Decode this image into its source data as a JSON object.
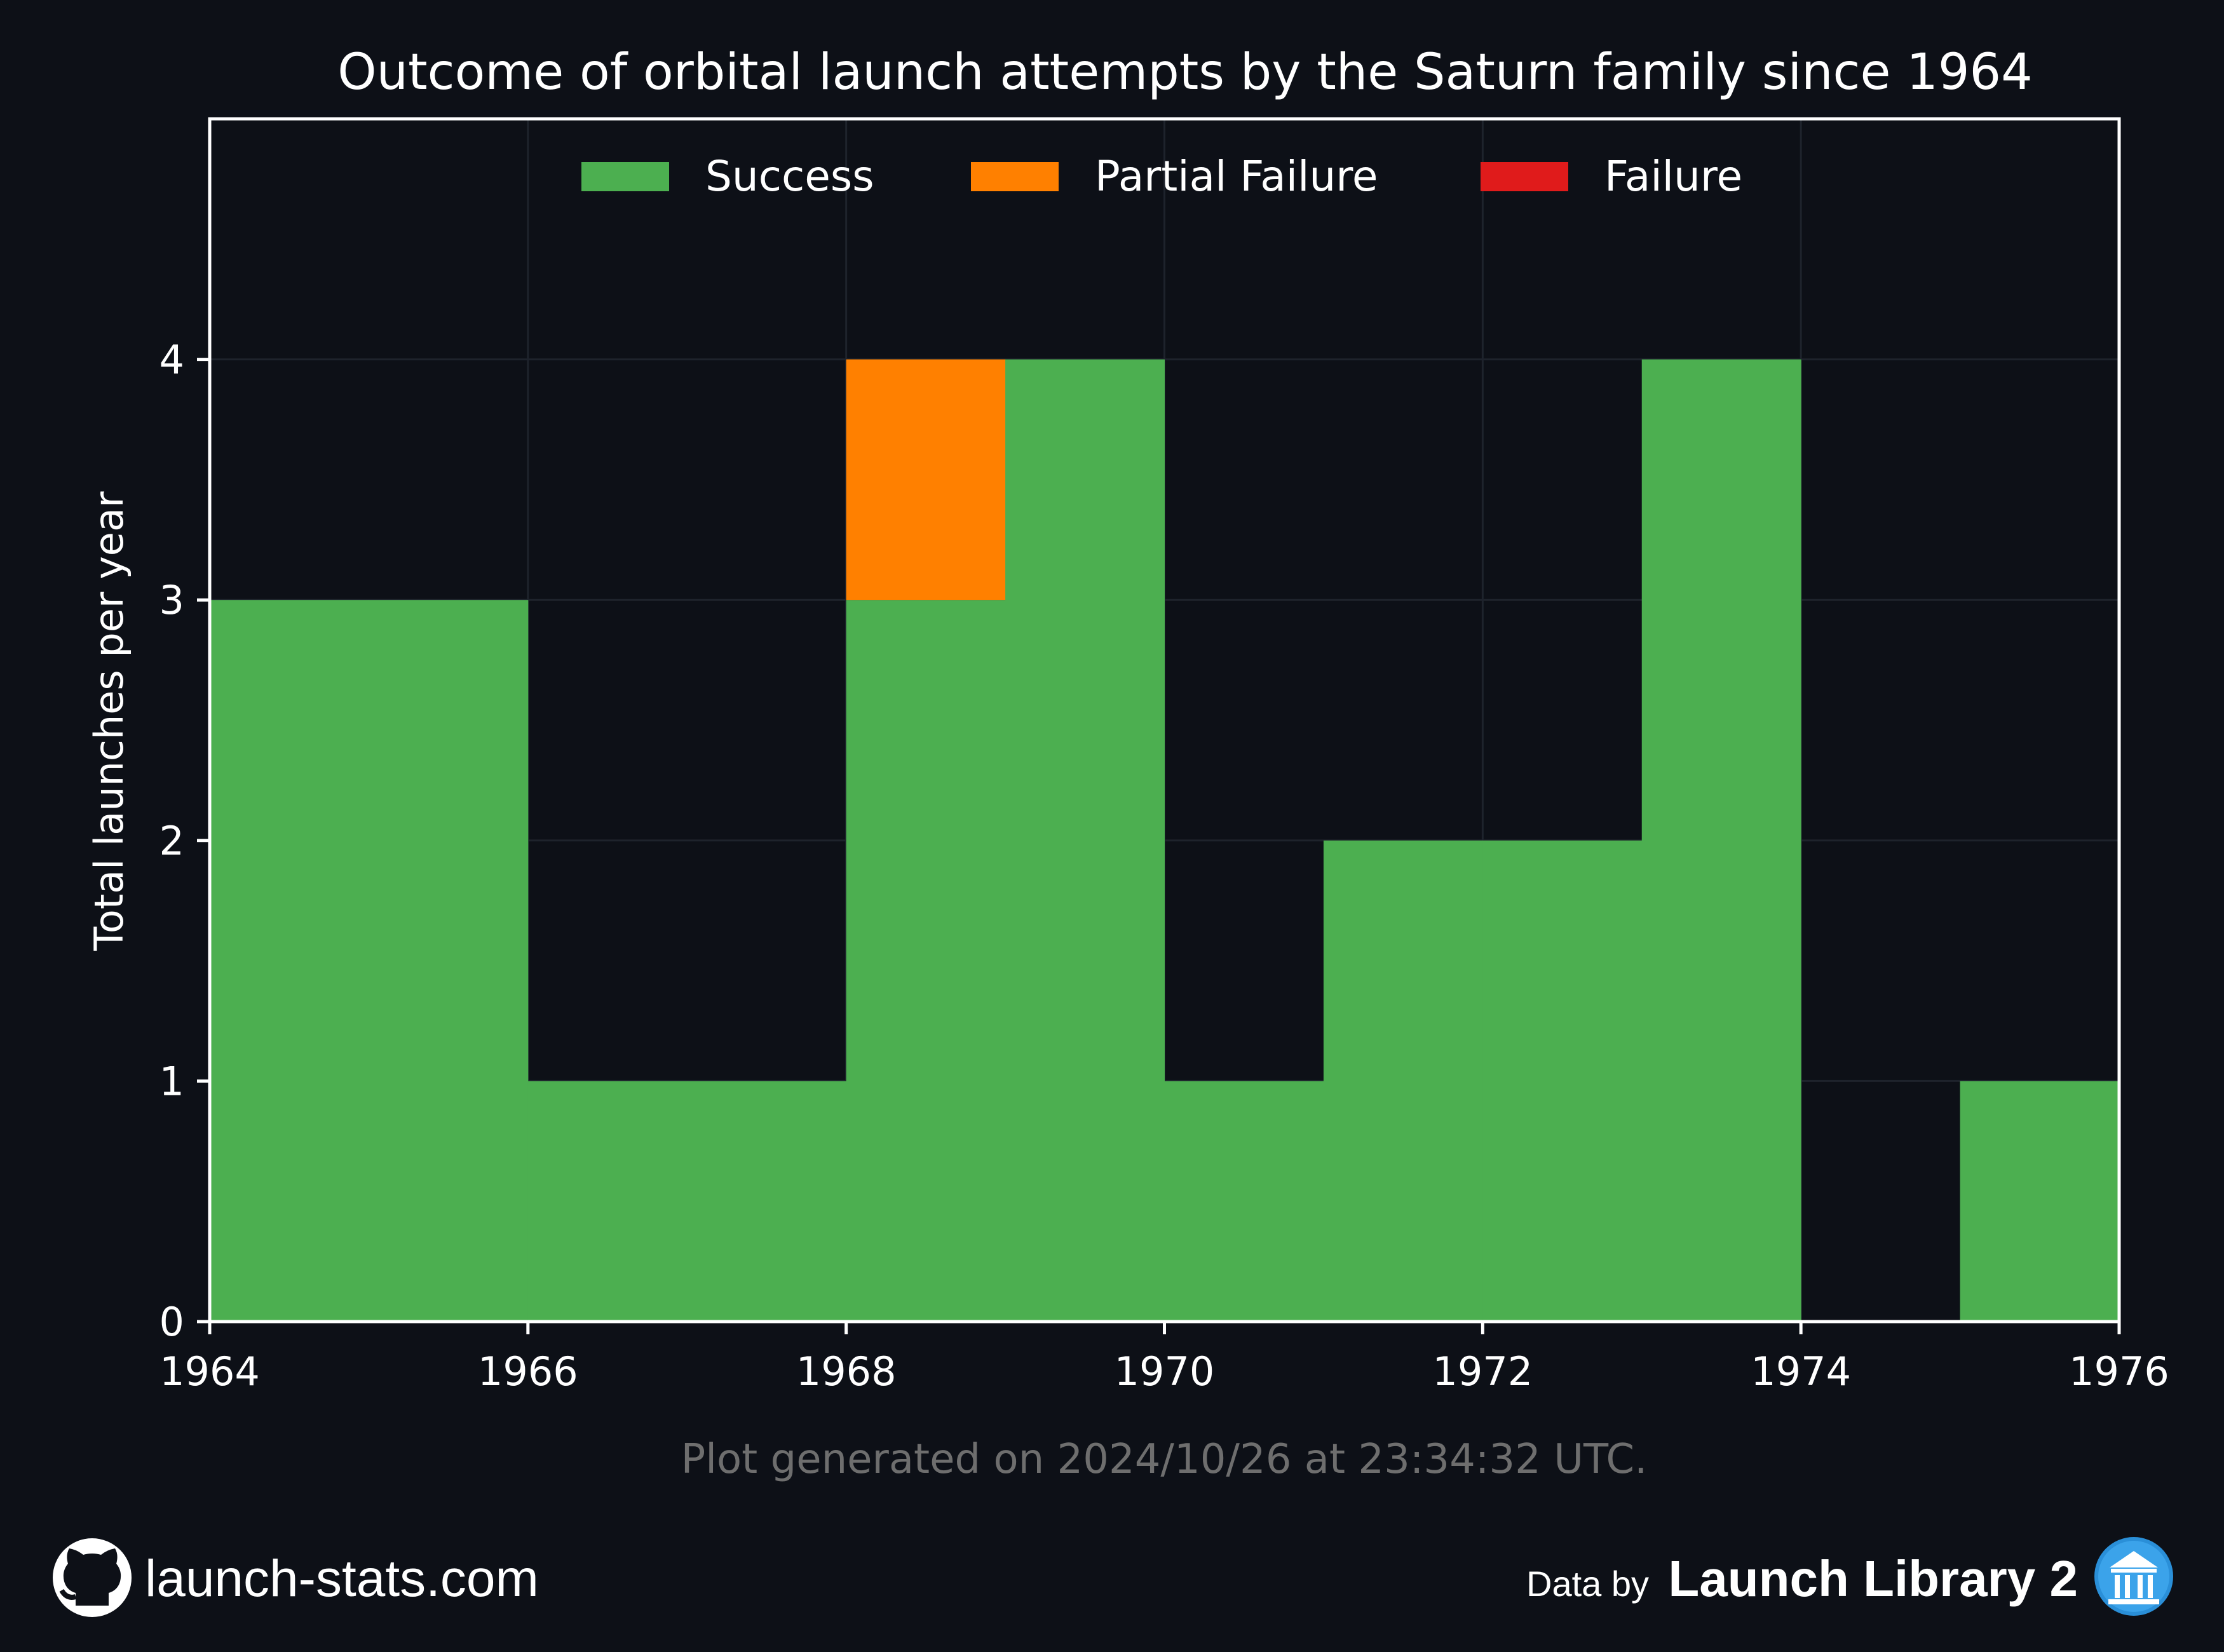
{
  "chart_data": {
    "type": "bar",
    "title": "Outcome of orbital launch attempts by the Saturn family since 1964",
    "ylabel": "Total launches per year",
    "xlabel": "",
    "categories": [
      "1964",
      "1965",
      "1966",
      "1967",
      "1968",
      "1969",
      "1970",
      "1971",
      "1972",
      "1973",
      "1974",
      "1975"
    ],
    "series": [
      {
        "name": "Success",
        "color": "#4caf50",
        "values": [
          3,
          3,
          1,
          1,
          3,
          4,
          1,
          2,
          2,
          4,
          0,
          1
        ]
      },
      {
        "name": "Partial Failure",
        "color": "#ff8000",
        "values": [
          0,
          0,
          0,
          0,
          1,
          0,
          0,
          0,
          0,
          0,
          0,
          0
        ]
      },
      {
        "name": "Failure",
        "color": "#e01b1b",
        "values": [
          0,
          0,
          0,
          0,
          0,
          0,
          0,
          0,
          0,
          0,
          0,
          0
        ]
      }
    ],
    "stacked": true,
    "xlim": [
      1964,
      1976
    ],
    "ylim": [
      0,
      5
    ],
    "xticks": [
      "1964",
      "1966",
      "1968",
      "1970",
      "1972",
      "1974",
      "1976"
    ],
    "yticks": [
      "0",
      "1",
      "2",
      "3",
      "4"
    ],
    "grid": true,
    "legend": "top-center"
  },
  "generated": "Plot generated on 2024/10/26 at 23:34:32 UTC.",
  "footer": {
    "site": "launch-stats.com",
    "data_by": "Data by",
    "library": "Launch Library 2",
    "github_icon": "github-icon",
    "library_icon": "launch-library-icon"
  },
  "colors": {
    "background": "#0d1017",
    "axes": "#ffffff",
    "grid": "#1e232c"
  }
}
